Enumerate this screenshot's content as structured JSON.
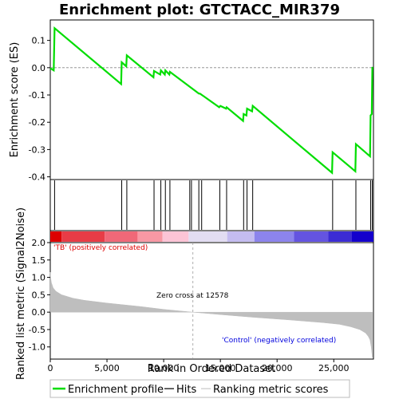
{
  "title": "Enrichment plot: GTCTACC_MIR379",
  "chart_data": [
    {
      "type": "line",
      "panel": "enrichment",
      "ylabel": "Enrichment score (ES)",
      "ylim": [
        -0.41,
        0.175
      ],
      "xlim": [
        0,
        28500
      ],
      "yticks": [
        0.1,
        0.0,
        -0.1,
        -0.2,
        -0.3,
        -0.4
      ],
      "ytick_labels": [
        "0.1",
        "0.0",
        "-0.1",
        "-0.2",
        "-0.3",
        "-0.4"
      ],
      "color": "#00dd00",
      "x": [
        0,
        300,
        380,
        6250,
        6300,
        6700,
        6750,
        9100,
        9150,
        9700,
        9750,
        10100,
        10150,
        10500,
        10550,
        13100,
        13200,
        14900,
        15000,
        15500,
        15550,
        17000,
        17050,
        17300,
        17350,
        17800,
        17850,
        24850,
        24900,
        26900,
        26950,
        28200,
        28250,
        28350,
        28400
      ],
      "y": [
        -0.002,
        -0.01,
        0.145,
        -0.06,
        0.02,
        0.005,
        0.045,
        -0.035,
        -0.012,
        -0.025,
        -0.01,
        -0.025,
        -0.01,
        -0.025,
        -0.015,
        -0.095,
        -0.095,
        -0.145,
        -0.14,
        -0.15,
        -0.145,
        -0.195,
        -0.17,
        -0.175,
        -0.15,
        -0.16,
        -0.14,
        -0.385,
        -0.31,
        -0.38,
        -0.28,
        -0.325,
        -0.175,
        -0.17,
        0.003
      ]
    },
    {
      "type": "scatter",
      "panel": "hits",
      "x": [
        380,
        6300,
        6750,
        9150,
        9750,
        10150,
        10550,
        12300,
        12450,
        13100,
        13350,
        14950,
        15550,
        17050,
        17350,
        17850,
        24900,
        26950,
        28250,
        28400
      ]
    },
    {
      "type": "area",
      "panel": "ranked-metric",
      "ylabel": "Ranked list metric (Signal2Noise)",
      "xlabel": "Rank in Ordered Dataset",
      "ylim": [
        -1.35,
        2.0
      ],
      "xlim": [
        0,
        28500
      ],
      "yticks": [
        2.0,
        1.5,
        1.0,
        0.5,
        0.0,
        -0.5,
        -1.0
      ],
      "ytick_labels": [
        "2.0",
        "1.5",
        "1.0",
        "0.5",
        "0.0",
        "-0.5",
        "-1.0"
      ],
      "xticks": [
        0,
        5000,
        10000,
        15000,
        20000,
        25000
      ],
      "xtick_labels": [
        "0",
        "5,000",
        "10,000",
        "15,000",
        "20,000",
        "25,000"
      ],
      "x": [
        0,
        30,
        100,
        250,
        500,
        1000,
        2000,
        3000,
        5000,
        8000,
        10000,
        12578,
        15000,
        18000,
        21000,
        24000,
        25500,
        26500,
        27300,
        27800,
        28050,
        28200,
        28300,
        28400
      ],
      "y": [
        1.15,
        1.0,
        0.85,
        0.7,
        0.6,
        0.5,
        0.4,
        0.34,
        0.26,
        0.16,
        0.08,
        0.0,
        -0.07,
        -0.15,
        -0.22,
        -0.3,
        -0.35,
        -0.42,
        -0.5,
        -0.6,
        -0.7,
        -0.8,
        -1.0,
        -1.3
      ],
      "zero_cross": 12578,
      "zero_cross_label": "Zero cross at 12578",
      "pos_label": "'TB' (positively correlated)",
      "neg_label": "'Control' (negatively correlated)",
      "pos_color": "#dd0000",
      "neg_color": "#0000dd"
    }
  ],
  "heatbar": {
    "segments": [
      {
        "x0": 0,
        "x1": 1000,
        "color": "#dd0000"
      },
      {
        "x0": 1000,
        "x1": 4800,
        "color": "#e83c46"
      },
      {
        "x0": 4800,
        "x1": 7700,
        "color": "#f06878"
      },
      {
        "x0": 7700,
        "x1": 9900,
        "color": "#f898a4"
      },
      {
        "x0": 9900,
        "x1": 12200,
        "color": "#fcc4d6"
      },
      {
        "x0": 12200,
        "x1": 15600,
        "color": "#e2ddf2"
      },
      {
        "x0": 15600,
        "x1": 18000,
        "color": "#c4bcf0"
      },
      {
        "x0": 18000,
        "x1": 21500,
        "color": "#8c84ec"
      },
      {
        "x0": 21500,
        "x1": 24500,
        "color": "#6454e0"
      },
      {
        "x0": 24500,
        "x1": 26600,
        "color": "#3c2cd4"
      },
      {
        "x0": 26600,
        "x1": 28500,
        "color": "#1400cc"
      }
    ]
  },
  "legend": [
    {
      "label": "Enrichment profile",
      "color": "#00dd00",
      "style": "line"
    },
    {
      "label": "Hits",
      "color": "#000000",
      "style": "line"
    },
    {
      "label": "Ranking metric scores",
      "color": "#c8c8c8",
      "style": "line"
    }
  ]
}
